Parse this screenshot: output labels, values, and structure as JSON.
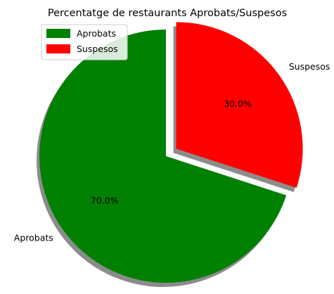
{
  "chart_data": {
    "type": "pie",
    "title": "Percentatge de restaurants Aprobats/Suspesos",
    "slices": [
      {
        "label": "Aprobats",
        "value": 70,
        "pct_label": "70.0%",
        "color": "#008000",
        "explode": 0
      },
      {
        "label": "Suspesos",
        "value": 30,
        "pct_label": "30.0%",
        "color": "#ff0000",
        "explode": 0.1
      }
    ],
    "start_angle_deg": 90,
    "shadow": true,
    "legend": {
      "placement": "top-left",
      "entries": [
        {
          "label": "Aprobats",
          "color": "#008000"
        },
        {
          "label": "Suspesos",
          "color": "#ff0000"
        }
      ]
    }
  }
}
